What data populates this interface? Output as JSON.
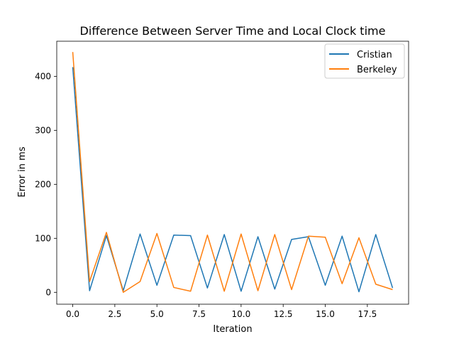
{
  "chart_data": {
    "type": "line",
    "title": "Difference Between Server Time and Local Clock time",
    "xlabel": "Iteration",
    "ylabel": "Error in ms",
    "xlim": [
      -0.95,
      19.95
    ],
    "ylim": [
      -22,
      465
    ],
    "x_ticks": [
      0.0,
      2.5,
      5.0,
      7.5,
      10.0,
      12.5,
      15.0,
      17.5
    ],
    "x_tick_labels": [
      "0.0",
      "2.5",
      "5.0",
      "7.5",
      "10.0",
      "12.5",
      "15.0",
      "17.5"
    ],
    "y_ticks": [
      0,
      100,
      200,
      300,
      400
    ],
    "y_tick_labels": [
      "0",
      "100",
      "200",
      "300",
      "400"
    ],
    "grid": false,
    "legend_position": "top-right",
    "x": [
      0,
      1,
      2,
      3,
      4,
      5,
      6,
      7,
      8,
      9,
      10,
      11,
      12,
      13,
      14,
      15,
      16,
      17,
      18,
      19
    ],
    "series": [
      {
        "name": "Cristian",
        "color": "#1f77b4",
        "values": [
          417,
          3,
          105,
          3,
          108,
          13,
          106,
          105,
          8,
          107,
          2,
          103,
          6,
          98,
          103,
          13,
          104,
          1,
          107,
          8
        ]
      },
      {
        "name": "Berkeley",
        "color": "#ff7f0e",
        "values": [
          445,
          20,
          111,
          0,
          20,
          109,
          9,
          2,
          106,
          2,
          108,
          3,
          107,
          5,
          104,
          102,
          16,
          101,
          15,
          5
        ]
      }
    ]
  }
}
